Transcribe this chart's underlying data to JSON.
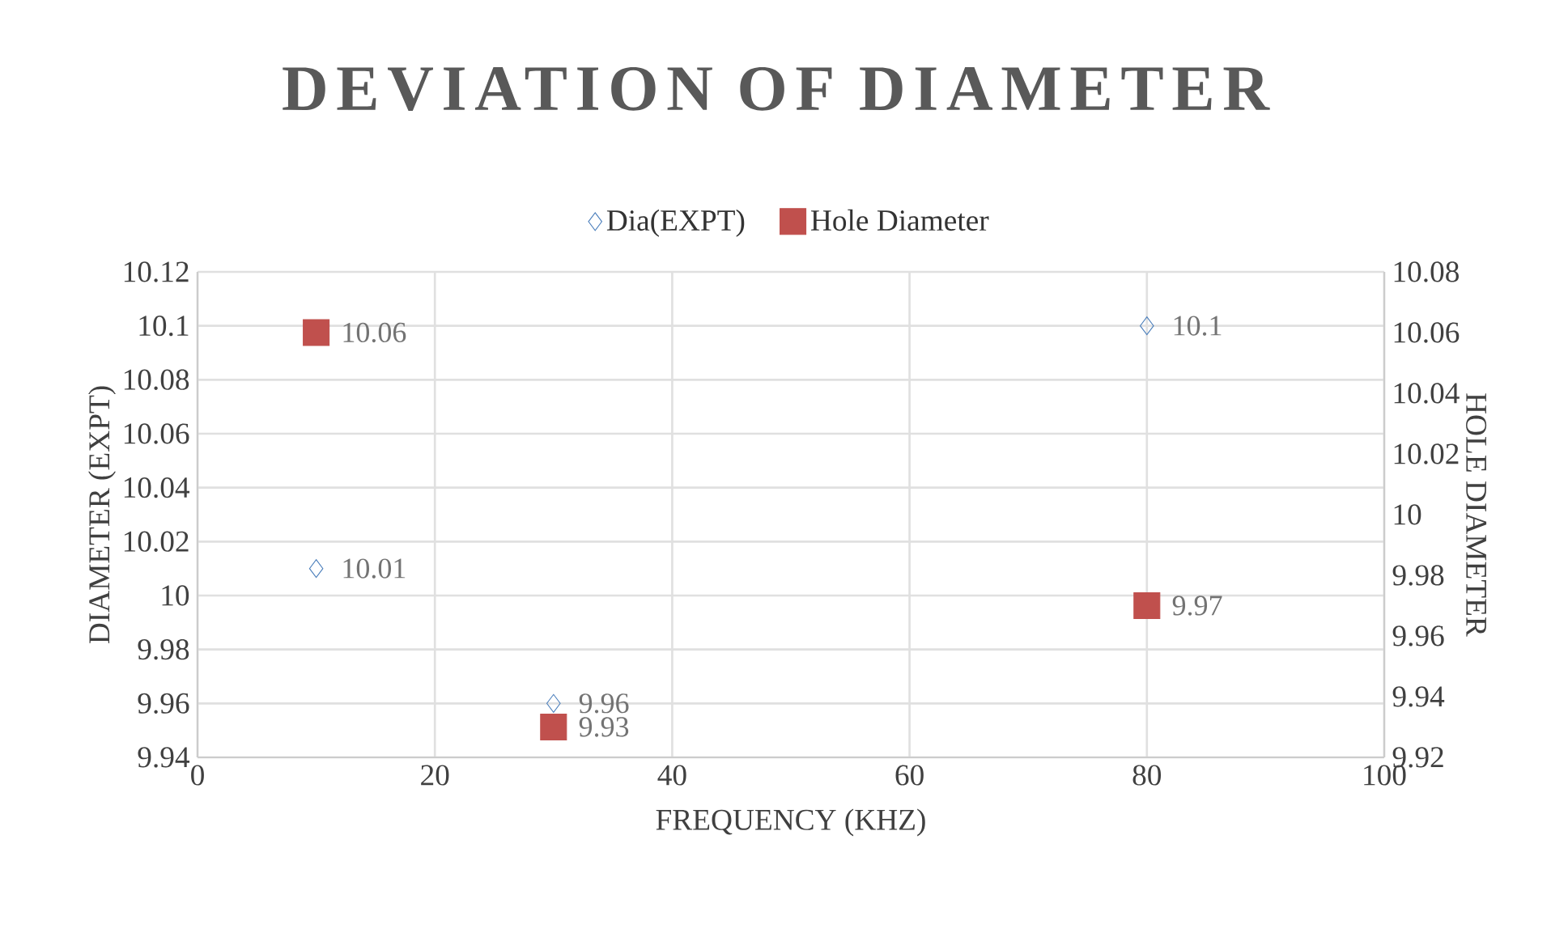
{
  "chart_data": {
    "type": "scatter",
    "title": "DEVIATION OF DIAMETER",
    "xlabel": "FREQUENCY (KHZ)",
    "ylabel": "DIAMETER (EXPT)",
    "y2label": "HOLE DIAMETER",
    "series": [
      {
        "name": "Dia(EXPT)",
        "color": "#4a7ebb",
        "marker": "diamond",
        "x": [
          10,
          30,
          80
        ],
        "values": [
          10.01,
          9.96,
          10.1
        ]
      },
      {
        "name": "Hole Diameter",
        "color": "#c0504d",
        "marker": "square",
        "axis": "y2",
        "x": [
          10,
          30,
          80
        ],
        "values": [
          10.06,
          9.93,
          9.97
        ]
      }
    ],
    "xlim": [
      0,
      100
    ],
    "xticks": [
      0,
      20,
      40,
      60,
      80,
      100
    ],
    "ylim": [
      9.94,
      10.12
    ],
    "yticks": [
      9.94,
      9.96,
      9.98,
      10,
      10.02,
      10.04,
      10.06,
      10.08,
      10.1,
      10.12
    ],
    "y2lim": [
      9.92,
      10.08
    ],
    "y2ticks": [
      9.92,
      9.94,
      9.96,
      9.98,
      10,
      10.02,
      10.04,
      10.06,
      10.08
    ],
    "grid": true,
    "legend": "top",
    "data_labels": true
  }
}
